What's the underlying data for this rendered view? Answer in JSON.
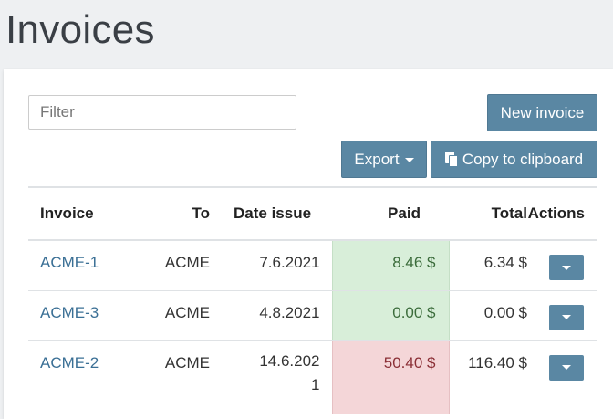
{
  "page": {
    "title": "Invoices"
  },
  "toolbar": {
    "filter_placeholder": "Filter",
    "new_invoice_label": "New invoice",
    "export_label": "Export",
    "copy_label": "Copy to clipboard"
  },
  "table": {
    "headers": {
      "invoice": "Invoice",
      "to": "To",
      "date_issued": "Date issue",
      "paid": "Paid",
      "total": "Total",
      "actions": "Actions"
    },
    "rows": [
      {
        "invoice": "ACME-1",
        "to": "ACME",
        "date_issued": "7.6.2021",
        "paid": "8.46 $",
        "paid_status": "ok",
        "total": "6.34 $"
      },
      {
        "invoice": "ACME-3",
        "to": "ACME",
        "date_issued": "4.8.2021",
        "paid": "0.00 $",
        "paid_status": "ok",
        "total": "0.00 $"
      },
      {
        "invoice": "ACME-2",
        "to": "ACME",
        "date_issued": "14.6.2021",
        "paid": "50.40 $",
        "paid_status": "bad",
        "total": "116.40 $"
      }
    ]
  },
  "colors": {
    "accent": "#5a87a3",
    "link": "#3a6f95",
    "paid_ok_bg": "#d8eed9",
    "paid_bad_bg": "#f4d6d8"
  }
}
